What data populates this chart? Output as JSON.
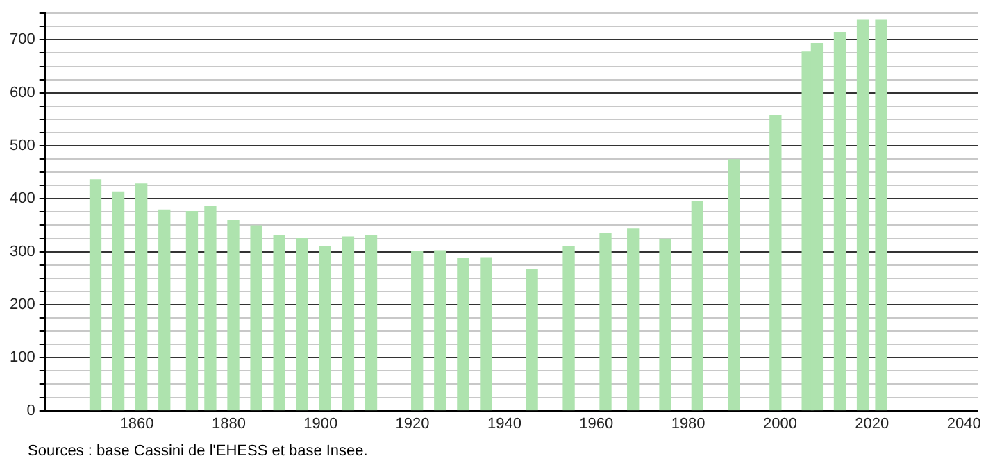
{
  "chart_data": {
    "type": "bar",
    "x": [
      1851,
      1856,
      1861,
      1866,
      1872,
      1876,
      1881,
      1886,
      1891,
      1896,
      1901,
      1906,
      1911,
      1921,
      1926,
      1931,
      1936,
      1946,
      1954,
      1962,
      1968,
      1975,
      1982,
      1990,
      1999,
      2006,
      2008,
      2013,
      2018,
      2022
    ],
    "values": [
      436,
      413,
      428,
      379,
      376,
      385,
      359,
      349,
      330,
      325,
      309,
      328,
      330,
      301,
      302,
      288,
      289,
      267,
      309,
      335,
      343,
      324,
      395,
      474,
      557,
      677,
      693,
      714,
      737,
      737
    ],
    "color": "#aee3ae",
    "xlim": [
      1840,
      2043
    ],
    "xticks": [
      1860,
      1880,
      1900,
      1920,
      1940,
      1960,
      1980,
      2000,
      2020,
      2040
    ],
    "ylim": [
      0,
      750
    ],
    "yticks": [
      0,
      {
        "value": 25,
        "label": null
      },
      {
        "value": 50,
        "label": null
      },
      {
        "value": 75,
        "label": null
      },
      100,
      {
        "value": 125,
        "label": null
      },
      {
        "value": 150,
        "label": null
      },
      {
        "value": 175,
        "label": null
      },
      200,
      {
        "value": 225,
        "label": null
      },
      {
        "value": 250,
        "label": null
      },
      {
        "value": 275,
        "label": null
      },
      300,
      {
        "value": 325,
        "label": null
      },
      {
        "value": 350,
        "label": null
      },
      {
        "value": 375,
        "label": null
      },
      400,
      {
        "value": 425,
        "label": null
      },
      {
        "value": 450,
        "label": null
      },
      {
        "value": 475,
        "label": null
      },
      500,
      {
        "value": 525,
        "label": null
      },
      {
        "value": 550,
        "label": null
      },
      {
        "value": 575,
        "label": null
      },
      600,
      {
        "value": 625,
        "label": null
      },
      {
        "value": 650,
        "label": null
      },
      {
        "value": 675,
        "label": null
      },
      700,
      {
        "value": 725,
        "label": null
      },
      {
        "value": 750,
        "label": null
      }
    ],
    "grid": "y",
    "legend": false,
    "annotations": [
      "Sources : base Cassini de l'EHESS et base Insee."
    ]
  }
}
